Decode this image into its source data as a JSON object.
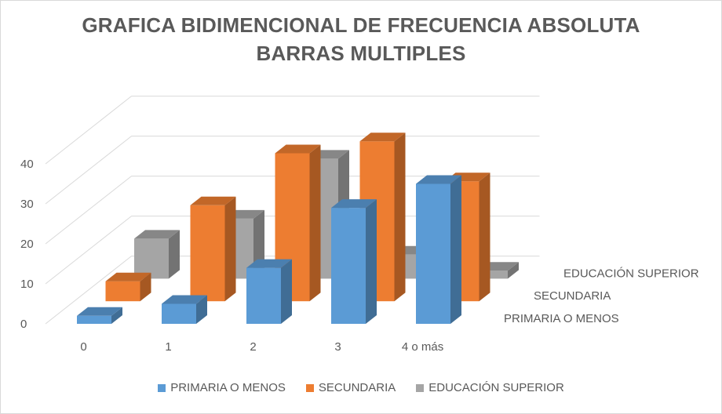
{
  "chart_data": {
    "type": "bar",
    "title": "GRAFICA BIDIMENCIONAL DE FRECUENCIA ABSOLUTA",
    "subtitle": "BARRAS MULTIPLES",
    "categories": [
      "0",
      "1",
      "2",
      "3",
      "4 o más"
    ],
    "ylim": [
      0,
      40
    ],
    "yticks": [
      "0",
      "10",
      "20",
      "30",
      "40"
    ],
    "grid": true,
    "legend": "bottom",
    "series": [
      {
        "name": "PRIMARIA O MENOS",
        "color": "#5b9bd5",
        "values": [
          2,
          5,
          14,
          29,
          35
        ]
      },
      {
        "name": "SECUNDARIA",
        "color": "#ed7d31",
        "values": [
          5,
          24,
          37,
          40,
          30
        ]
      },
      {
        "name": "EDUCACIÓN SUPERIOR",
        "color": "#a5a5a5",
        "values": [
          10,
          15,
          30,
          6,
          2
        ]
      }
    ],
    "depth_labels": [
      "PRIMARIA O MENOS",
      "SECUNDARIA",
      "EDUCACIÓN SUPERIOR"
    ]
  }
}
